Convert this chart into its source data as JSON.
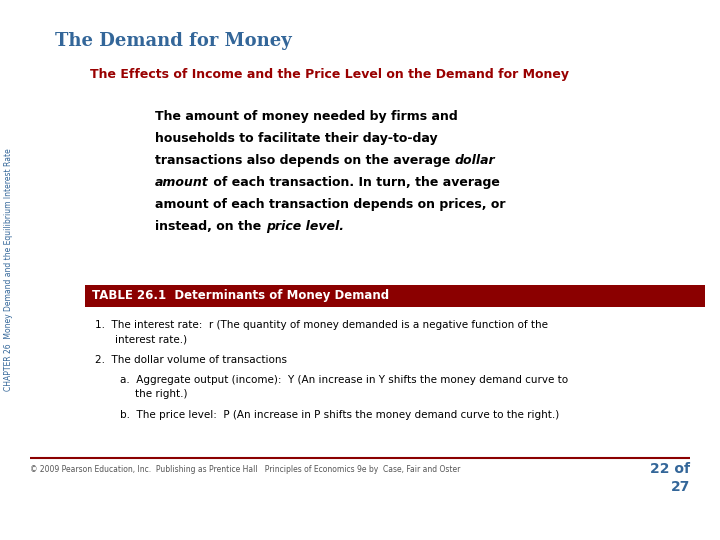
{
  "title": "The Demand for Money",
  "subtitle": "The Effects of Income and the Price Level on the Demand for Money",
  "title_color": "#336699",
  "subtitle_color": "#990000",
  "sidebar_text": "CHAPTER 26  Money Demand and the Equilibrium Interest Rate",
  "sidebar_color": "#336699",
  "table_header": "TABLE 26.1  Determinants of Money Demand",
  "table_header_bg": "#8B0000",
  "table_header_text_color": "#FFFFFF",
  "footer": "© 2009 Pearson Education, Inc.  Publishing as Prentice Hall   Principles of Economics 9e by  Case, Fair and Oster",
  "footer_color": "#555555",
  "page_number": "22 of",
  "page_number2": "27",
  "page_number_color": "#336699",
  "bg_color": "#FFFFFF",
  "line_color": "#8B0000"
}
